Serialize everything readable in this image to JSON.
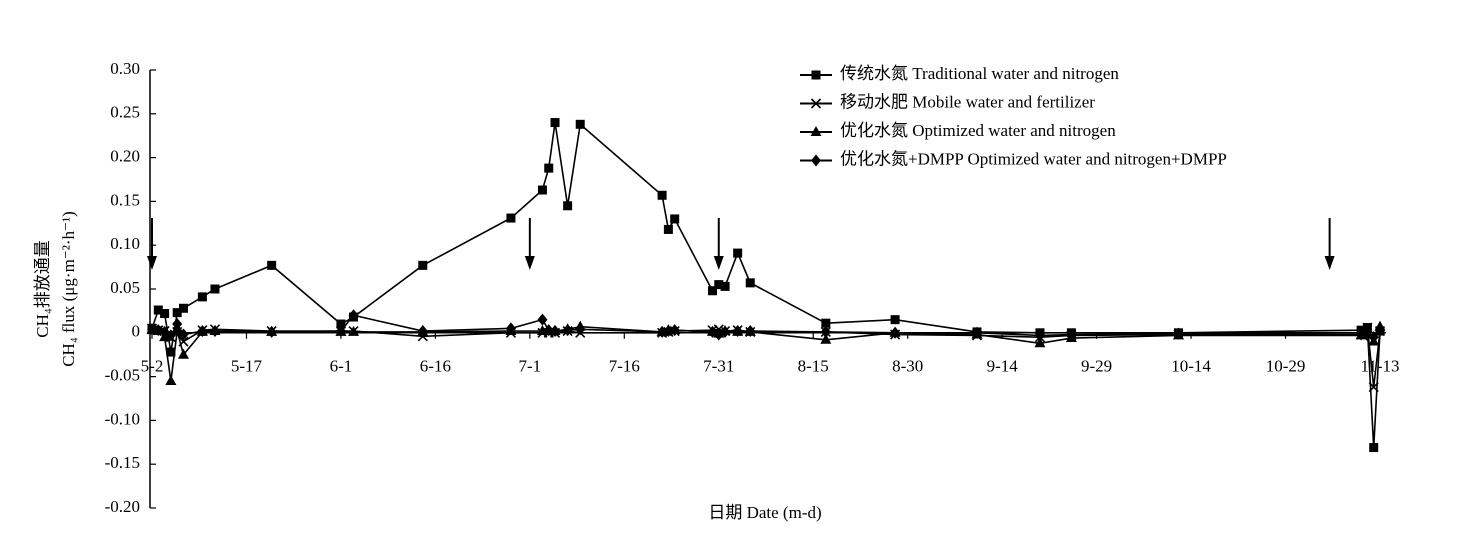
{
  "chart_data": {
    "type": "line",
    "x_label": "日期 Date (m-d)",
    "y_label": [
      "CH₄排放通量",
      "CH₄ flux (μg·m⁻²·h⁻¹)"
    ],
    "x": [
      "5-2",
      "5-3",
      "5-4",
      "5-5",
      "5-6",
      "5-7",
      "5-10",
      "5-12",
      "5-21",
      "6-1",
      "6-3",
      "6-14",
      "6-28",
      "7-3",
      "7-4",
      "7-5",
      "7-7",
      "7-9",
      "7-22",
      "7-23",
      "7-24",
      "7-30",
      "7-31",
      "8-1",
      "8-3",
      "8-5",
      "8-17",
      "8-28",
      "9-10",
      "9-20",
      "9-25",
      "10-12",
      "11-10",
      "11-11",
      "11-12",
      "11-13"
    ],
    "xlim": [
      "5-2",
      "11-13"
    ],
    "xticks": [
      "5-2",
      "5-17",
      "6-1",
      "6-16",
      "7-1",
      "7-16",
      "7-31",
      "8-15",
      "8-30",
      "9-14",
      "9-29",
      "10-14",
      "10-29",
      "11-13"
    ],
    "ylim": [
      -0.2,
      0.3
    ],
    "yticks": [
      {
        "value": 0.3,
        "label": "0.30"
      },
      0.25,
      {
        "value": 0.2,
        "label": "0.20"
      },
      0.15,
      {
        "value": 0.1,
        "label": "0.10"
      },
      0.05,
      0,
      -0.05,
      {
        "value": -0.1,
        "label": "-0.10"
      },
      -0.15,
      {
        "value": -0.2,
        "label": "-0.20"
      }
    ],
    "arrows": [
      "5-2",
      "7-1",
      "7-31",
      "11-5"
    ],
    "legend": "upper right",
    "series": [
      {
        "name": "传统水氮 Traditional water and nitrogen",
        "color": "#000000",
        "marker": "square",
        "values": [
          0.005,
          0.026,
          0.022,
          -0.022,
          0.023,
          0.028,
          0.041,
          0.05,
          0.077,
          0.01,
          0.018,
          0.077,
          0.131,
          0.163,
          0.188,
          0.24,
          0.145,
          0.238,
          0.157,
          0.118,
          0.13,
          0.048,
          0.055,
          0.053,
          0.091,
          0.057,
          0.011,
          0.015,
          0.001,
          0,
          0,
          0,
          0.003,
          0.006,
          -0.131,
          0.002
        ]
      },
      {
        "name": "移动水肥 Mobile water and fertilizer",
        "color": "#000000",
        "marker": "x",
        "values": [
          0.005,
          0.003,
          0.002,
          -0.005,
          0.001,
          -0.01,
          0.003,
          0.004,
          0.002,
          0.002,
          0.002,
          -0.004,
          0,
          0,
          0,
          0,
          0.002,
          0,
          0,
          0.001,
          0.002,
          0.003,
          0.004,
          0.002,
          0.003,
          0.001,
          0.001,
          -0.002,
          -0.003,
          -0.005,
          -0.003,
          -0.002,
          -0.002,
          0.006,
          -0.062,
          0.002
        ]
      },
      {
        "name": "优化水氮 Optimized water and nitrogen",
        "color": "#000000",
        "marker": "triangle",
        "values": [
          0.003,
          0.002,
          -0.005,
          -0.055,
          0.002,
          -0.025,
          0.001,
          0.002,
          0.001,
          0.001,
          0.001,
          0.001,
          0.002,
          0.002,
          0.003,
          0.002,
          0.004,
          0.007,
          0.001,
          0.003,
          0.003,
          0.001,
          -0.001,
          0.002,
          0.001,
          0.001,
          -0.008,
          0,
          -0.002,
          -0.012,
          -0.006,
          -0.003,
          -0.003,
          -0.002,
          -0.01,
          0.007
        ]
      },
      {
        "name": "优化水氮+DMPP Optimized water and nitrogen+DMPP",
        "color": "#000000",
        "marker": "diamond",
        "values": [
          0.004,
          0.003,
          0.001,
          -0.003,
          0.01,
          -0.002,
          0.002,
          0.002,
          0.001,
          0.002,
          0.02,
          0.002,
          0.005,
          0.015,
          0.003,
          0.002,
          0.003,
          0.004,
          0.001,
          0.002,
          0.003,
          0.001,
          -0.002,
          0.001,
          0.002,
          0.002,
          0.001,
          0,
          0,
          -0.003,
          -0.002,
          -0.001,
          -0.002,
          -0.003,
          -0.005,
          0.004
        ]
      }
    ]
  }
}
